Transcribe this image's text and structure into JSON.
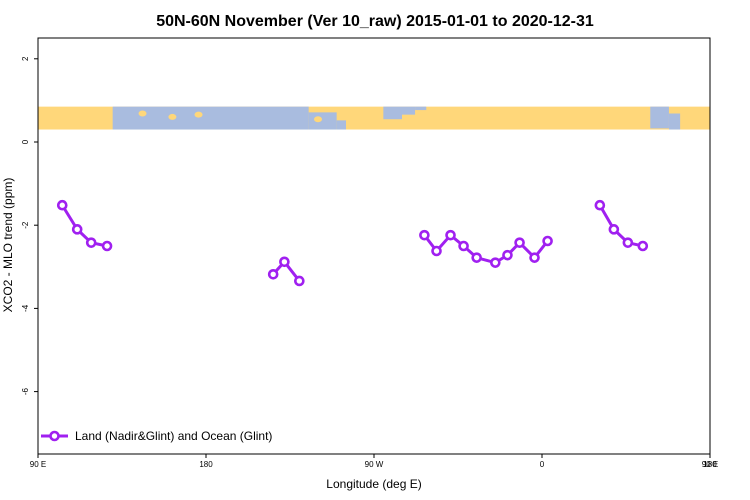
{
  "chart_data": {
    "type": "line",
    "title": "50N-60N November (Ver 10_raw)   2015-01-01 to 2020-12-31",
    "xlabel": "Longitude (deg E)",
    "ylabel": "XCO2 - MLO trend (ppm)",
    "xlim": [
      90,
      450
    ],
    "ylim": [
      -7.5,
      2.5
    ],
    "xticks": [
      {
        "value": 90,
        "label": "90 E"
      },
      {
        "value": 180,
        "label": "180"
      },
      {
        "value": 270,
        "label": "90 W"
      },
      {
        "value": 360,
        "label": "0"
      },
      {
        "value": 450,
        "label": "90 E"
      }
    ],
    "extra_xtick_label": "180",
    "yticks": [
      {
        "value": 2,
        "label": "2"
      },
      {
        "value": 0,
        "label": "0"
      },
      {
        "value": -2,
        "label": "-2"
      },
      {
        "value": -4,
        "label": "-4"
      },
      {
        "value": -6,
        "label": "-6"
      }
    ],
    "grid": false,
    "legend_position": "bottom-left",
    "map_strip": {
      "y_range": [
        0.3,
        0.85
      ],
      "land_color": "#FFD77A",
      "ocean_color": "#A9BCDF"
    },
    "series": [
      {
        "name": "Land (Nadir&Glint) and Ocean (Glint)",
        "color": "#A020F0",
        "segments": [
          [
            {
              "x": 103,
              "y": -1.52
            },
            {
              "x": 111,
              "y": -2.1
            },
            {
              "x": 118.5,
              "y": -2.42
            },
            {
              "x": 127,
              "y": -2.5
            }
          ],
          [
            {
              "x": 216,
              "y": -3.18
            },
            {
              "x": 222,
              "y": -2.88
            },
            {
              "x": 230,
              "y": -3.34
            }
          ],
          [
            {
              "x": 297,
              "y": -2.24
            },
            {
              "x": 303.5,
              "y": -2.62
            },
            {
              "x": 311,
              "y": -2.24
            },
            {
              "x": 318,
              "y": -2.5
            },
            {
              "x": 325,
              "y": -2.78
            },
            {
              "x": 335,
              "y": -2.9
            },
            {
              "x": 341.5,
              "y": -2.72
            },
            {
              "x": 348,
              "y": -2.42
            },
            {
              "x": 356,
              "y": -2.78
            },
            {
              "x": 363,
              "y": -2.38
            }
          ],
          [
            {
              "x": 391,
              "y": -1.52
            },
            {
              "x": 398.5,
              "y": -2.1
            },
            {
              "x": 406,
              "y": -2.42
            },
            {
              "x": 414,
              "y": -2.5
            }
          ]
        ]
      }
    ]
  }
}
